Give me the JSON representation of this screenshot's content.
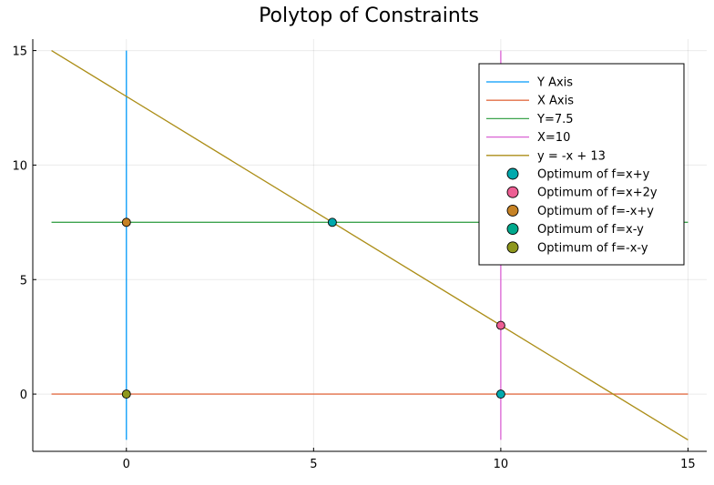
{
  "chart_data": {
    "type": "line",
    "title": "Polytop of Constraints",
    "xlabel": "",
    "ylabel": "",
    "xlim": [
      -2.5,
      15.5
    ],
    "ylim": [
      -2.5,
      15.5
    ],
    "xticks": [
      0,
      5,
      10,
      15
    ],
    "yticks": [
      0,
      5,
      10,
      15
    ],
    "grid": true,
    "legend_position": "top-right",
    "lines": [
      {
        "name": "Y Axis",
        "color": "#009AFA",
        "x": [
          0,
          0
        ],
        "y": [
          -2,
          15
        ]
      },
      {
        "name": "X Axis",
        "color": "#E36F47",
        "x": [
          -2,
          15
        ],
        "y": [
          0,
          0
        ]
      },
      {
        "name": "Y=7.5",
        "color": "#3EA44E",
        "x": [
          -2,
          15
        ],
        "y": [
          7.5,
          7.5
        ]
      },
      {
        "name": "X=10",
        "color": "#DA62D4",
        "x": [
          10,
          10
        ],
        "y": [
          -2,
          15
        ]
      },
      {
        "name": "y = -x + 13",
        "color": "#AC8E18",
        "x": [
          -2,
          15
        ],
        "y": [
          15,
          -2
        ]
      }
    ],
    "points": [
      {
        "name": "Optimum of f=x+y",
        "color": "#00A9AD",
        "x": [
          5.5,
          10
        ],
        "y": [
          7.5,
          0
        ]
      },
      {
        "name": "Optimum of f=x+2y",
        "color": "#ED5E93",
        "x": [
          10
        ],
        "y": [
          3
        ]
      },
      {
        "name": "Optimum of f=-x+y",
        "color": "#C68225",
        "x": [
          0
        ],
        "y": [
          7.5
        ]
      },
      {
        "name": "Optimum of f=x-y",
        "color": "#00A98D",
        "x": [],
        "y": []
      },
      {
        "name": "Optimum of f=-x-y",
        "color": "#8E971D",
        "x": [
          0
        ],
        "y": [
          0
        ]
      }
    ]
  }
}
